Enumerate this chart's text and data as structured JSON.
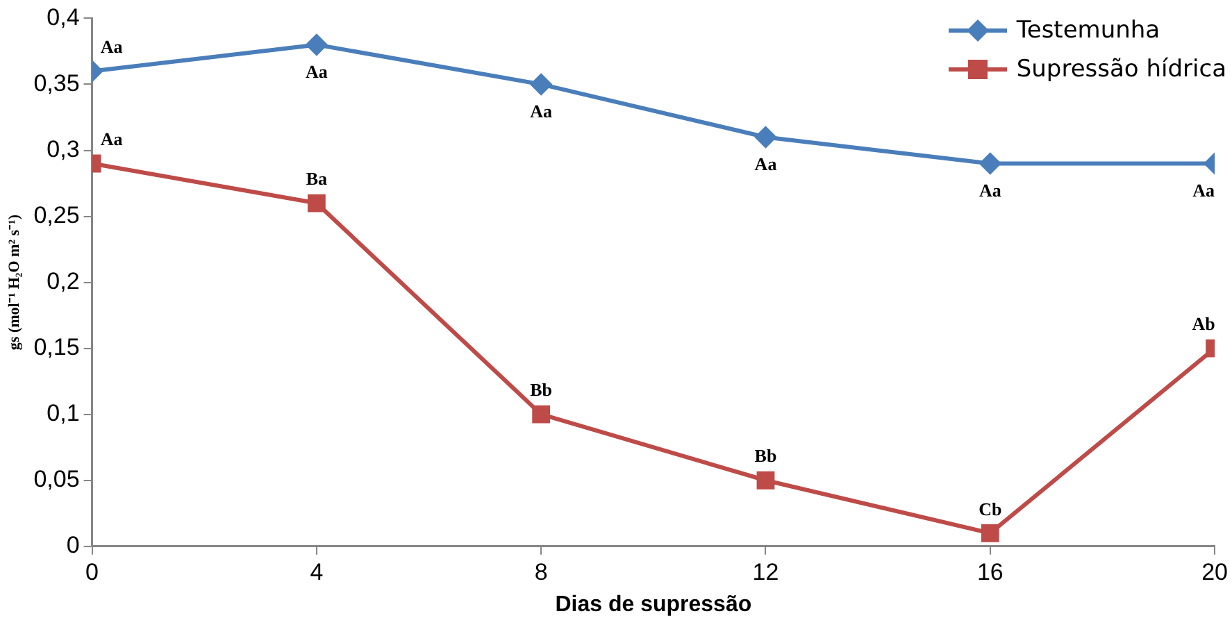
{
  "chart_data": {
    "type": "line",
    "xlabel": "Dias de supressão",
    "ylabel": "gs (mol⁻¹ H₂O m² s⁻¹)",
    "x": [
      0,
      4,
      8,
      12,
      16,
      20
    ],
    "series": [
      {
        "name": "Testemunha",
        "color": "#4a7ebb",
        "marker": "diamond",
        "values": [
          0.36,
          0.38,
          0.35,
          0.31,
          0.29,
          0.29
        ],
        "value_labels": [
          "Aa",
          "Aa",
          "Aa",
          "Aa",
          "Aa",
          "Aa"
        ]
      },
      {
        "name": "Supressão hídrica",
        "color": "#be4b48",
        "marker": "square",
        "values": [
          0.29,
          0.26,
          0.1,
          0.05,
          0.01,
          0.15
        ],
        "value_labels": [
          "Aa",
          "Ba",
          "Bb",
          "Bb",
          "Cb",
          "Ab"
        ]
      }
    ],
    "xlim": [
      0,
      20
    ],
    "xticks": [
      0,
      4,
      8,
      12,
      16,
      20
    ],
    "ylim": [
      0,
      0.4
    ],
    "yticks": [
      0,
      {
        "value": 0.05,
        "label": "0,05"
      },
      {
        "value": 0.1,
        "label": "0,1"
      },
      {
        "value": 0.15,
        "label": "0,15"
      },
      {
        "value": 0.2,
        "label": "0,2"
      },
      {
        "value": 0.25,
        "label": "0,25"
      },
      {
        "value": 0.3,
        "label": "0,3"
      },
      {
        "value": 0.35,
        "label": "0,35"
      },
      {
        "value": 0.4,
        "label": "0,4"
      }
    ],
    "grid": false,
    "legend": "top right",
    "line_style": "solid"
  }
}
